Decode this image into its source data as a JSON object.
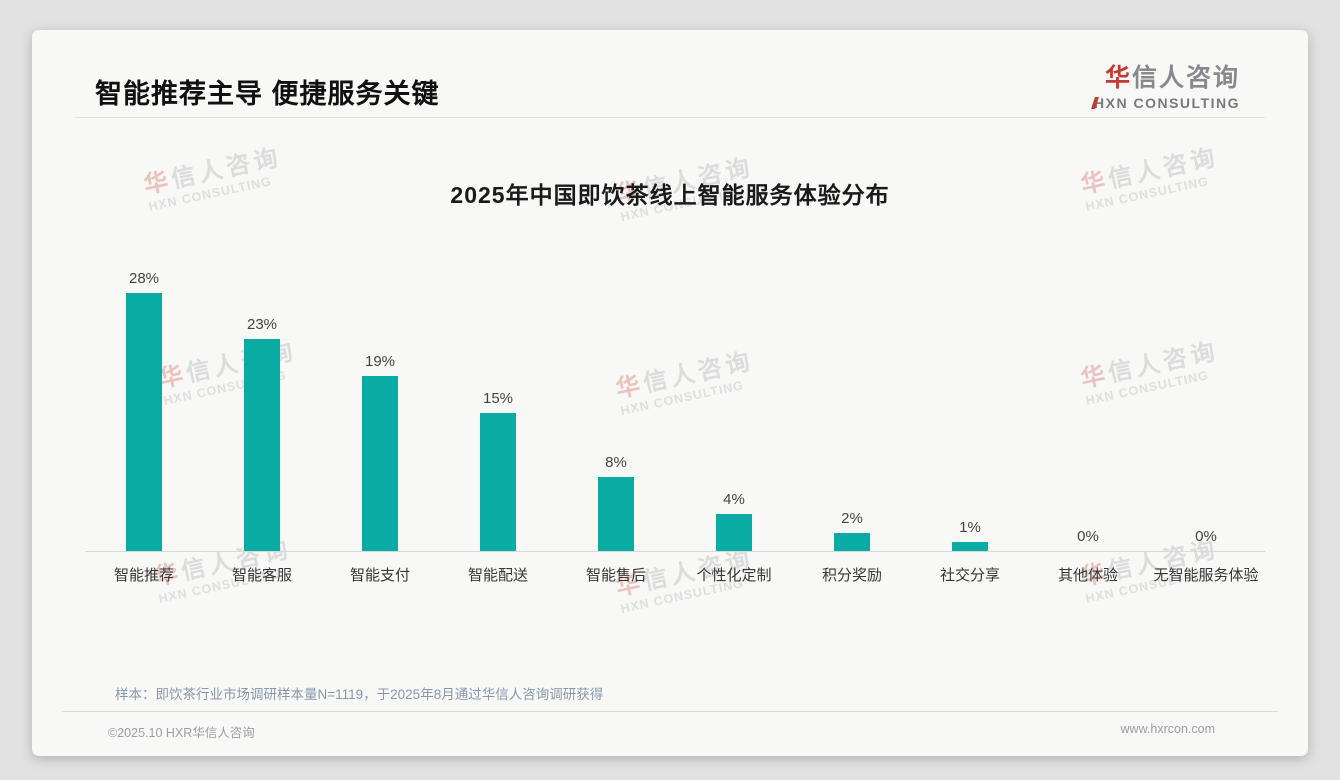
{
  "header": {
    "title": "智能推荐主导 便捷服务关键",
    "logo": {
      "cn_accent": "华",
      "cn_rest": "信人咨询",
      "en": "HXN CONSULTING"
    }
  },
  "chart_data": {
    "type": "bar",
    "title": "2025年中国即饮茶线上智能服务体验分布",
    "categories": [
      "智能推荐",
      "智能客服",
      "智能支付",
      "智能配送",
      "智能售后",
      "个性化定制",
      "积分奖励",
      "社交分享",
      "其他体验",
      "无智能服务体验"
    ],
    "values": [
      28,
      23,
      19,
      15,
      8,
      4,
      2,
      1,
      0,
      0
    ],
    "unit": "%",
    "value_labels": [
      "28%",
      "23%",
      "19%",
      "15%",
      "8%",
      "4%",
      "2%",
      "1%",
      "0%",
      "0%"
    ],
    "bar_color": "#09aba2",
    "ylim": [
      0,
      30
    ],
    "grid": false,
    "legend": null,
    "value_label_position": "above-bar"
  },
  "footnote": {
    "text": "样本：即饮茶行业市场调研样本量N=1119，于2025年8月通过华信人咨询调研获得"
  },
  "footer": {
    "copyright": "©2025.10 HXR华信人咨询",
    "website": "www.hxrcon.com"
  },
  "watermark": {
    "cn_accent": "华",
    "cn_rest": "信人咨询",
    "en": "HXN CONSULTING"
  },
  "colors": {
    "bar": "#09aba2",
    "accent_red": "#c13b33",
    "axis": "#d8d8d8",
    "card_bg": "#f8f8f7",
    "page_bg": "#e2e2e2"
  }
}
